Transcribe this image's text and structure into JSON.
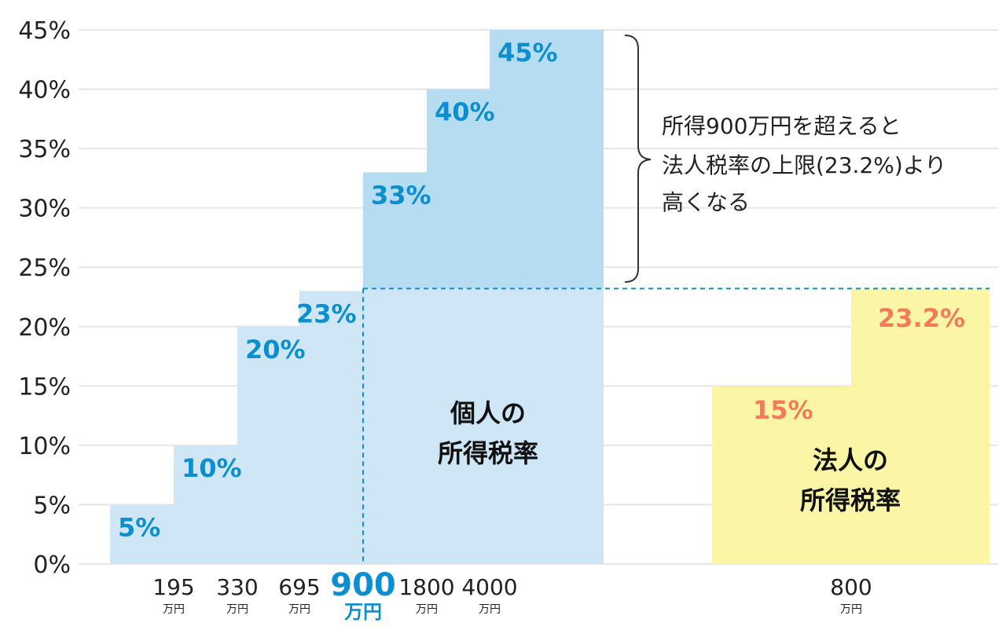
{
  "chart_data": {
    "type": "bar",
    "ylim": [
      0,
      45
    ],
    "y_ticks": [
      "0%",
      "5%",
      "10%",
      "15%",
      "20%",
      "25%",
      "30%",
      "35%",
      "40%",
      "45%"
    ],
    "grid": true,
    "colors": {
      "individual": "#cfe6f6",
      "individual_upper": "#b6dcf2",
      "individual_text": "#0b8fcf",
      "corporate": "#fbf5a6",
      "corporate_text": "#f47a5a",
      "grid": "#e6e6e6",
      "reference_line": "#0b8fcf"
    },
    "series": [
      {
        "name": "個人の所得税率",
        "name_lines": [
          "個人の",
          "所得税率"
        ],
        "values": [
          5,
          10,
          20,
          23,
          33,
          40,
          45
        ],
        "labels": [
          "5%",
          "10%",
          "20%",
          "23%",
          "33%",
          "40%",
          "45%"
        ],
        "thresholds": [
          {
            "value": "195",
            "unit": "万円"
          },
          {
            "value": "330",
            "unit": "万円"
          },
          {
            "value": "695",
            "unit": "万円"
          },
          {
            "value": "900",
            "unit": "万円",
            "highlight": true
          },
          {
            "value": "1800",
            "unit": "万円"
          },
          {
            "value": "4000",
            "unit": "万円"
          }
        ]
      },
      {
        "name": "法人の所得税率",
        "name_lines": [
          "法人の",
          "所得税率"
        ],
        "values": [
          15,
          23.2
        ],
        "labels": [
          "15%",
          "23.2%"
        ],
        "thresholds": [
          {
            "value": "800",
            "unit": "万円"
          }
        ]
      }
    ],
    "reference_line_value": 23.2,
    "annotation": [
      "所得900万円を超えると",
      "法人税率の上限(23.2%)より",
      "高くなる"
    ]
  }
}
